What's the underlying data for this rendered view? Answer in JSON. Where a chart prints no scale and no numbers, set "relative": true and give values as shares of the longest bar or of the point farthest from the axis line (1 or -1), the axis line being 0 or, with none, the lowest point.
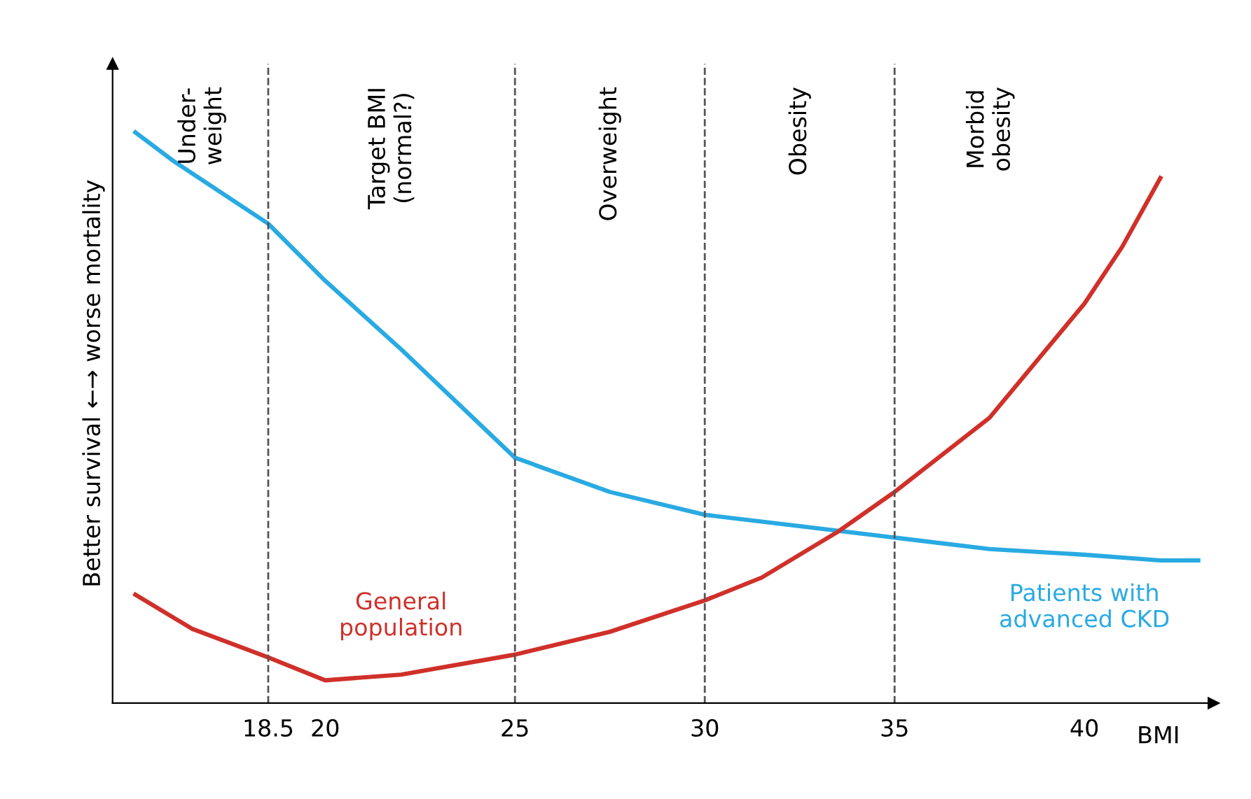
{
  "chart_data": {
    "type": "line",
    "relative": true,
    "xlabel": "BMI",
    "ylabel": "Better survival ←→ worse mortality",
    "xlim": [
      14.4,
      43.4
    ],
    "xticks": [
      18.5,
      20,
      25,
      30,
      35,
      40
    ],
    "series": [
      {
        "name": "Patients with\nadvanced CKD",
        "color": "#29aae2",
        "x": [
          15,
          16,
          18.5,
          20,
          22,
          25,
          27.5,
          30,
          32.5,
          35,
          37.5,
          40,
          42,
          43
        ],
        "values": [
          1.0,
          0.95,
          0.84,
          0.74,
          0.62,
          0.43,
          0.37,
          0.33,
          0.31,
          0.29,
          0.27,
          0.26,
          0.25,
          0.25
        ]
      },
      {
        "name": "General\npopulation",
        "color": "#d0302a",
        "x": [
          15,
          16.5,
          18.5,
          20,
          22,
          25,
          27.5,
          30,
          31.5,
          33.5,
          35,
          37.5,
          40,
          41,
          42
        ],
        "values": [
          0.19,
          0.13,
          0.08,
          0.04,
          0.05,
          0.085,
          0.125,
          0.18,
          0.22,
          0.3,
          0.37,
          0.5,
          0.7,
          0.8,
          0.92
        ]
      }
    ],
    "ref_lines": [
      {
        "axis": "x",
        "value": 18.5,
        "color": "#555555",
        "line_style": "dashed"
      },
      {
        "axis": "x",
        "value": 25,
        "color": "#555555",
        "line_style": "dashed"
      },
      {
        "axis": "x",
        "value": 30,
        "color": "#555555",
        "line_style": "dashed"
      },
      {
        "axis": "x",
        "value": 35,
        "color": "#555555",
        "line_style": "dashed"
      }
    ],
    "annotations": [
      "Under-\nweight",
      "Target BMI\n(normal?)",
      "Overweight",
      "Obesity",
      "Morbid\nobesity"
    ],
    "legend": false,
    "grid": false,
    "marker": "none",
    "line_style": "solid"
  }
}
